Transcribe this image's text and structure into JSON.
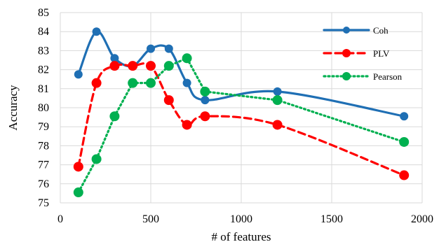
{
  "chart_data": {
    "type": "line",
    "title": "",
    "xlabel": "# of features",
    "ylabel": "Accuracy",
    "xlim": [
      0,
      2000
    ],
    "ylim": [
      75,
      85
    ],
    "xticks": [
      0,
      500,
      1000,
      1500,
      2000
    ],
    "yticks": [
      75,
      76,
      77,
      78,
      79,
      80,
      81,
      82,
      83,
      84,
      85
    ],
    "grid": true,
    "legend_position": "top-right",
    "x": [
      100,
      200,
      300,
      400,
      500,
      600,
      700,
      800,
      1200,
      1900
    ],
    "series": [
      {
        "name": "Coh",
        "color": "#1f6fb4",
        "dash": "solid",
        "smooth": true,
        "values": [
          81.75,
          84.0,
          82.6,
          82.2,
          83.1,
          83.1,
          81.3,
          80.4,
          80.85,
          79.55
        ]
      },
      {
        "name": "PLV",
        "color": "#ff0000",
        "dash": "dashed",
        "smooth": true,
        "values": [
          76.9,
          81.3,
          82.2,
          82.2,
          82.2,
          80.4,
          79.1,
          79.55,
          79.1,
          76.45
        ]
      },
      {
        "name": "Pearson",
        "color": "#00b050",
        "dash": "dotted",
        "smooth": false,
        "values": [
          75.55,
          77.3,
          79.55,
          81.3,
          81.3,
          82.2,
          82.6,
          80.85,
          80.4,
          78.2
        ]
      }
    ]
  }
}
